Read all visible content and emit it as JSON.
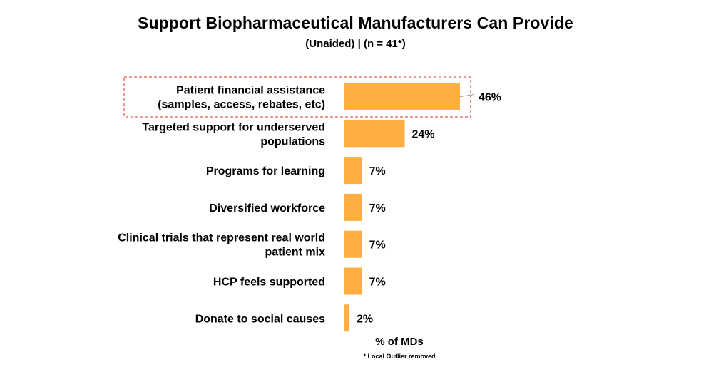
{
  "header": {
    "title": "Support Biopharmaceutical Manufacturers Can Provide",
    "subtitle": "(Unaided) | (n = 41*)"
  },
  "footer": {
    "xlabel": "% of MDs",
    "footnote": "* Local Outlier removed"
  },
  "colors": {
    "bar": "#FFAE42",
    "highlight_border": "#E0302A"
  },
  "chart_data": {
    "type": "bar",
    "orientation": "horizontal",
    "categories": [
      "Patient financial assistance (samples, access, rebates, etc)",
      "Targeted support for underserved populations",
      "Programs for learning",
      "Diversified workforce",
      "Clinical trials that represent real world patient mix",
      "HCP feels supported",
      "Donate to social causes"
    ],
    "category_lines": [
      [
        "Patient financial assistance",
        "(samples, access, rebates, etc)"
      ],
      [
        "Targeted support for underserved",
        "populations"
      ],
      [
        "Programs for learning"
      ],
      [
        "Diversified workforce"
      ],
      [
        "Clinical trials that represent real world",
        "patient mix"
      ],
      [
        "HCP feels supported"
      ],
      [
        "Donate to social causes"
      ]
    ],
    "values": [
      46,
      24,
      7,
      7,
      7,
      7,
      2
    ],
    "data_labels": [
      "46%",
      "24%",
      "7%",
      "7%",
      "7%",
      "7%",
      "2%"
    ],
    "unit": "%",
    "highlighted_category_index": 0,
    "xlabel": "% of MDs",
    "xlim": [
      0,
      46
    ],
    "grid": false,
    "legend": "none"
  }
}
